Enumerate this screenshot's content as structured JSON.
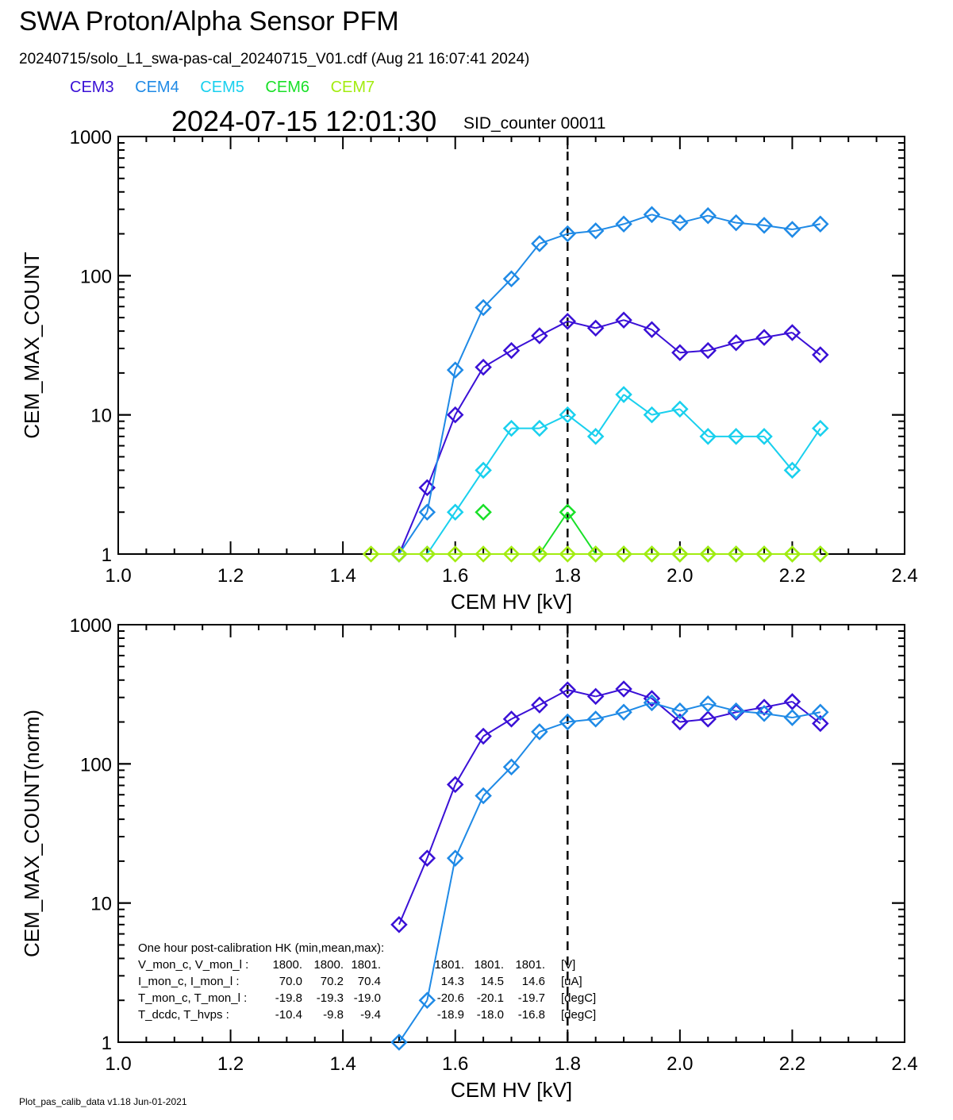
{
  "header": {
    "title": "SWA Proton/Alpha Sensor PFM",
    "file_line": "20240715/solo_L1_swa-pas-cal_20240715_V01.cdf  (Aug 21 16:07:41 2024)",
    "timestamp": "2024-07-15 12:01:30",
    "sid_counter": "SID_counter 00011"
  },
  "legend": [
    {
      "name": "CEM3",
      "color": "#3a10d6"
    },
    {
      "name": "CEM4",
      "color": "#1f8ae6"
    },
    {
      "name": "CEM5",
      "color": "#19d0ee"
    },
    {
      "name": "CEM6",
      "color": "#19e028"
    },
    {
      "name": "CEM7",
      "color": "#a2ec10"
    }
  ],
  "footer": "Plot_pas_calib_data v1.18 Jun-01-2021",
  "hk_box": {
    "title": "One hour post-calibration HK (min,mean,max):",
    "rows": [
      {
        "label": "V_mon_c, V_mon_l :",
        "c": [
          "1800.",
          "1800.",
          "1801."
        ],
        "l": [
          "1801.",
          "1801.",
          "1801."
        ],
        "unit": "[V]"
      },
      {
        "label": "I_mon_c,  I_mon_l :",
        "c": [
          "70.0",
          "70.2",
          "70.4"
        ],
        "l": [
          "14.3",
          "14.5",
          "14.6"
        ],
        "unit": "[uA]"
      },
      {
        "label": "T_mon_c, T_mon_l :",
        "c": [
          "-19.8",
          "-19.3",
          "-19.0"
        ],
        "l": [
          "-20.6",
          "-20.1",
          "-19.7"
        ],
        "unit": "[degC]"
      },
      {
        "label": "T_dcdc,    T_hvps :",
        "c": [
          "-10.4",
          "-9.8",
          "-9.4"
        ],
        "l": [
          "-18.9",
          "-18.0",
          "-16.8"
        ],
        "unit": "[degC]"
      }
    ]
  },
  "chart_data": [
    {
      "type": "line",
      "xlabel": "CEM HV [kV]",
      "ylabel": "CEM_MAX_COUNT",
      "xlim": [
        1.0,
        2.4
      ],
      "ylim": [
        1,
        1000
      ],
      "yscale": "log",
      "xticks": [
        "1.0",
        "1.2",
        "1.4",
        "1.6",
        "1.8",
        "2.0",
        "2.2",
        "2.4"
      ],
      "yticks": [
        "1",
        "10",
        "100",
        "1000"
      ],
      "vline_x": 1.8,
      "x": [
        1.45,
        1.5,
        1.55,
        1.6,
        1.65,
        1.7,
        1.75,
        1.8,
        1.85,
        1.9,
        1.95,
        2.0,
        2.05,
        2.1,
        2.15,
        2.2,
        2.25
      ],
      "series": [
        {
          "name": "CEM3",
          "color": "#3a10d6",
          "values": [
            null,
            1,
            3,
            10,
            22,
            29,
            37,
            47,
            42,
            48,
            41,
            28,
            29,
            33,
            36,
            39,
            27
          ]
        },
        {
          "name": "CEM4",
          "color": "#1f8ae6",
          "values": [
            null,
            1,
            2,
            21,
            59,
            95,
            170,
            200,
            210,
            235,
            275,
            240,
            270,
            240,
            230,
            215,
            235
          ]
        },
        {
          "name": "CEM5",
          "color": "#19d0ee",
          "values": [
            null,
            1,
            1,
            2,
            4,
            8,
            8,
            10,
            7,
            14,
            10,
            11,
            7,
            7,
            7,
            4,
            8
          ]
        },
        {
          "name": "CEM6",
          "color": "#19e028",
          "values": [
            null,
            null,
            null,
            null,
            2,
            null,
            1,
            2,
            1,
            1,
            1,
            1,
            1,
            1,
            1,
            1,
            1
          ]
        },
        {
          "name": "CEM7",
          "color": "#a2ec10",
          "values": [
            1,
            1,
            1,
            1,
            1,
            1,
            1,
            1,
            1,
            1,
            1,
            1,
            1,
            1,
            1,
            1,
            1
          ]
        }
      ]
    },
    {
      "type": "line",
      "xlabel": "CEM HV [kV]",
      "ylabel": "CEM_MAX_COUNT(norm)",
      "xlim": [
        1.0,
        2.4
      ],
      "ylim": [
        1,
        1000
      ],
      "yscale": "log",
      "xticks": [
        "1.0",
        "1.2",
        "1.4",
        "1.6",
        "1.8",
        "2.0",
        "2.2",
        "2.4"
      ],
      "yticks": [
        "1",
        "10",
        "100",
        "1000"
      ],
      "vline_x": 1.8,
      "x": [
        1.45,
        1.5,
        1.55,
        1.6,
        1.65,
        1.7,
        1.75,
        1.8,
        1.85,
        1.9,
        1.95,
        2.0,
        2.05,
        2.1,
        2.15,
        2.2,
        2.25
      ],
      "series": [
        {
          "name": "CEM3",
          "color": "#3a10d6",
          "values": [
            null,
            7,
            21,
            71,
            158,
            210,
            265,
            340,
            305,
            345,
            295,
            200,
            210,
            235,
            255,
            280,
            195
          ]
        },
        {
          "name": "CEM4",
          "color": "#1f8ae6",
          "values": [
            null,
            1,
            2,
            21,
            59,
            95,
            170,
            200,
            210,
            235,
            275,
            240,
            270,
            240,
            230,
            215,
            235
          ]
        }
      ]
    }
  ]
}
